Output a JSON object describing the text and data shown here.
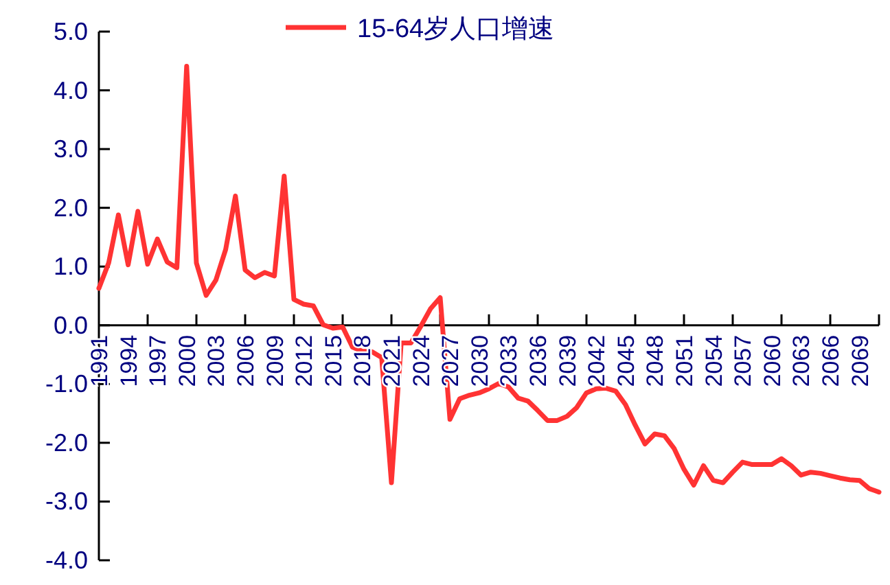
{
  "chart_data": {
    "type": "line",
    "legend": "top",
    "categories": [
      "1991",
      null,
      null,
      "1994",
      null,
      null,
      "1997",
      null,
      null,
      "2000",
      null,
      null,
      "2003",
      null,
      null,
      "2006",
      null,
      null,
      "2009",
      null,
      null,
      "2012",
      null,
      null,
      "2015",
      null,
      null,
      "2018",
      null,
      null,
      "2021",
      null,
      null,
      "2024",
      null,
      null,
      "2027",
      null,
      null,
      "2030",
      null,
      null,
      "2033",
      null,
      null,
      "2036",
      null,
      null,
      "2039",
      null,
      null,
      "2042",
      null,
      null,
      "2045",
      null,
      null,
      "2048",
      null,
      null,
      "2051",
      null,
      null,
      "2054",
      null,
      null,
      "2057",
      null,
      null,
      "2060",
      null,
      null,
      "2063",
      null,
      null,
      "2066",
      null,
      null,
      "2069",
      null,
      null
    ],
    "series": [
      {
        "name": "15-64岁人口增速",
        "color": "#ff3333",
        "values": [
          0.63,
          1.06,
          1.88,
          1.03,
          1.94,
          1.04,
          1.47,
          1.08,
          0.98,
          4.41,
          1.06,
          0.51,
          0.77,
          1.29,
          2.2,
          0.94,
          0.81,
          0.9,
          0.84,
          2.54,
          0.44,
          0.36,
          0.33,
          0.01,
          -0.05,
          -0.03,
          -0.37,
          -0.44,
          -0.45,
          -0.55,
          -2.68,
          -0.3,
          -0.3,
          -0.02,
          0.28,
          0.47,
          -1.6,
          -1.25,
          -1.19,
          -1.15,
          -1.08,
          -0.99,
          -1.05,
          -1.24,
          -1.29,
          -1.45,
          -1.62,
          -1.62,
          -1.55,
          -1.4,
          -1.15,
          -1.08,
          -1.07,
          -1.12,
          -1.35,
          -1.7,
          -2.02,
          -1.85,
          -1.88,
          -2.1,
          -2.45,
          -2.72,
          -2.39,
          -2.64,
          -2.68,
          -2.5,
          -2.33,
          -2.37,
          -2.37,
          -2.37,
          -2.27,
          -2.39,
          -2.55,
          -2.5,
          -2.52,
          -2.56,
          -2.6,
          -2.63,
          -2.64,
          -2.78,
          -2.84
        ]
      }
    ],
    "ylim": [
      -4,
      5
    ],
    "yticks": [
      {
        "value": -4,
        "label": "-4.0"
      },
      {
        "value": -3,
        "label": "-3.0"
      },
      {
        "value": -2,
        "label": "-2.0"
      },
      {
        "value": -1,
        "label": "-1.0"
      },
      {
        "value": 0,
        "label": "0.0"
      },
      {
        "value": 1,
        "label": "1.0"
      },
      {
        "value": 2,
        "label": "2.0"
      },
      {
        "value": 3,
        "label": "3.0"
      },
      {
        "value": 4,
        "label": "4.0"
      },
      {
        "value": 5,
        "label": "5.0"
      }
    ],
    "grid": false,
    "marker": "none",
    "line_style": "solid"
  }
}
